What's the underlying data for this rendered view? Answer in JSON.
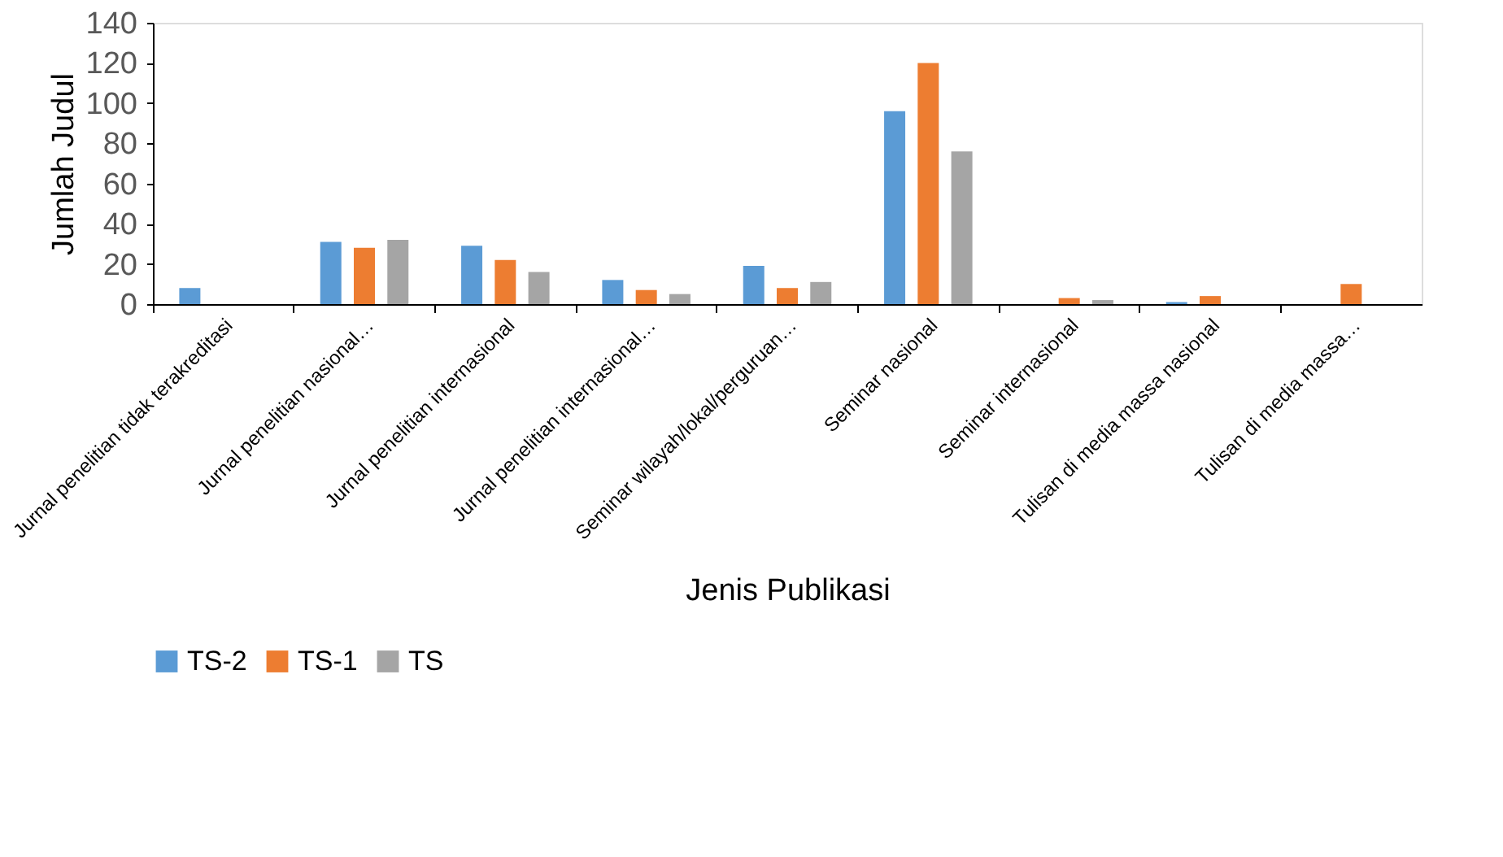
{
  "chart_data": {
    "type": "bar",
    "xlabel": "Jenis Publikasi",
    "ylabel": "Jumlah Judul",
    "categories": [
      "Jurnal penelitian tidak terakreditasi",
      "Jurnal penelitian nasional…",
      "Jurnal penelitian internasional",
      "Jurnal penelitian internasional…",
      "Seminar wilayah/lokal/perguruan…",
      "Seminar nasional",
      "Seminar internasional",
      "Tulisan di media massa nasional",
      "Tulisan di media massa…"
    ],
    "series": [
      {
        "name": "TS-2",
        "color": "#5b9bd5",
        "values": [
          8,
          31,
          29,
          12,
          19,
          96,
          0,
          1,
          0
        ]
      },
      {
        "name": "TS-1",
        "color": "#ed7d31",
        "values": [
          0,
          28,
          22,
          7,
          8,
          120,
          3,
          4,
          10
        ]
      },
      {
        "name": "TS",
        "color": "#a5a5a5",
        "values": [
          0,
          32,
          16,
          5,
          11,
          76,
          2,
          0,
          0
        ]
      }
    ],
    "ylim": [
      0,
      140
    ],
    "yticks": [
      0,
      20,
      40,
      60,
      80,
      100,
      120,
      140
    ],
    "grid": false,
    "legend": "bottom"
  }
}
